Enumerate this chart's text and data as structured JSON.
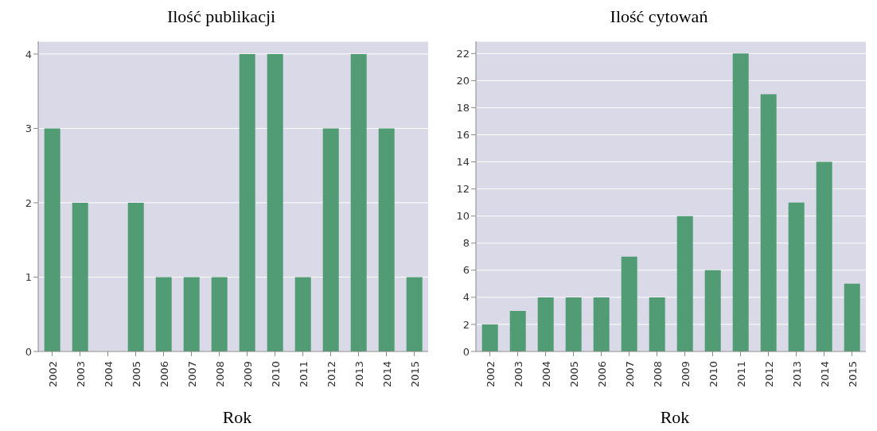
{
  "chart_data": [
    {
      "type": "bar",
      "title": "Ilość publikacji",
      "xlabel": "Rok",
      "categories": [
        "2002",
        "2003",
        "2004",
        "2005",
        "2006",
        "2007",
        "2008",
        "2009",
        "2010",
        "2011",
        "2012",
        "2013",
        "2014",
        "2015"
      ],
      "values": [
        3,
        2,
        0,
        2,
        1,
        1,
        1,
        4,
        4,
        1,
        3,
        4,
        3,
        1
      ],
      "color": "#519c74",
      "ylim": [
        0,
        4.17
      ],
      "yticks": [
        0,
        1,
        2,
        3,
        4
      ],
      "grid": "y"
    },
    {
      "type": "bar",
      "title": "Ilość cytowań",
      "xlabel": "Rok",
      "categories": [
        "2002",
        "2003",
        "2004",
        "2005",
        "2006",
        "2007",
        "2008",
        "2009",
        "2010",
        "2011",
        "2012",
        "2013",
        "2014",
        "2015"
      ],
      "values": [
        2,
        3,
        4,
        4,
        4,
        7,
        4,
        10,
        6,
        22,
        19,
        11,
        14,
        5
      ],
      "color": "#519c74",
      "ylim": [
        0,
        22.9
      ],
      "yticks": [
        0,
        2,
        4,
        6,
        8,
        10,
        12,
        14,
        16,
        18,
        20,
        22
      ],
      "grid": "y"
    }
  ]
}
